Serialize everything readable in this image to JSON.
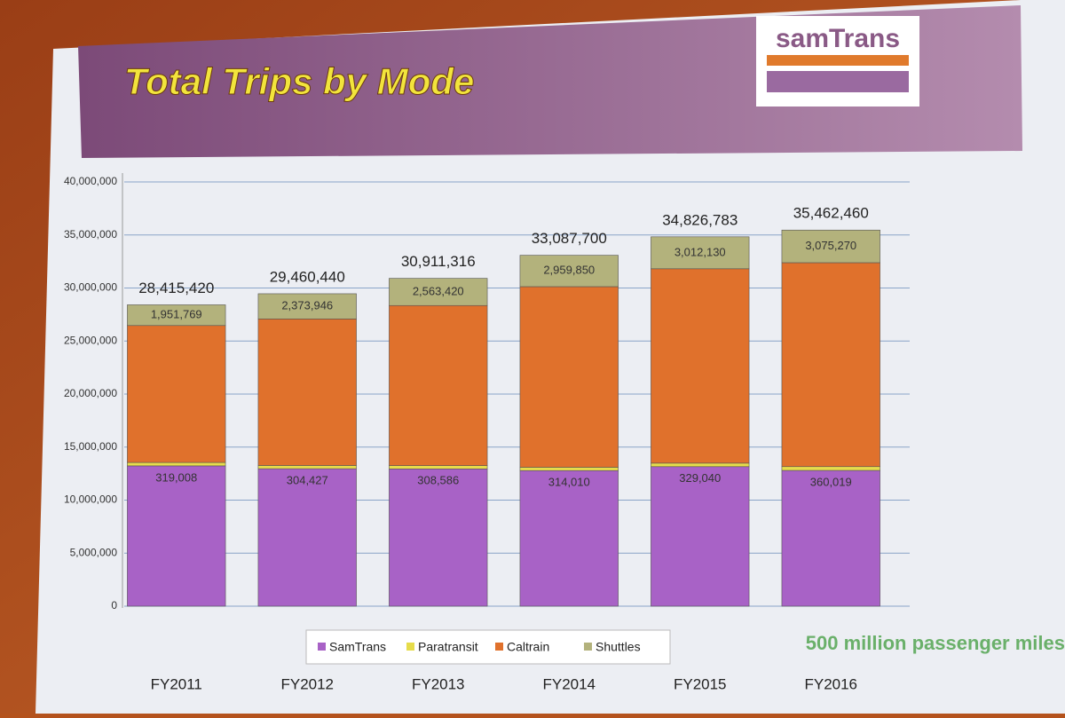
{
  "chart_data": {
    "type": "stacked_bar",
    "title": "Total Trips by Mode",
    "logo": "samTrans",
    "annotation": "500 million passenger miles",
    "categories": [
      "FY2011",
      "FY2012",
      "FY2013",
      "FY2014",
      "FY2015",
      "FY2016"
    ],
    "series": [
      {
        "name": "SamTrans",
        "color": "#a862c6",
        "values": [
          13230000,
          12960000,
          12945000,
          12784390,
          13156700,
          12799750
        ]
      },
      {
        "name": "Paratransit",
        "color": "#e6dc4a",
        "values": [
          319008,
          304427,
          308586,
          314010,
          329040,
          360019
        ],
        "value_labels": [
          "319,008",
          "304,427",
          "308,586",
          "314,010",
          "329,040",
          "360,019"
        ]
      },
      {
        "name": "Caltrain",
        "color": "#e0712c",
        "values": [
          12914643,
          13822067,
          15094310,
          17029450,
          18328913,
          19227421
        ]
      },
      {
        "name": "Shuttles",
        "color": "#b3b27c",
        "values": [
          1951769,
          2373946,
          2563420,
          2959850,
          3012130,
          3075270
        ],
        "value_labels": [
          "1,951,769",
          "2,373,946",
          "2,563,420",
          "2,959,850",
          "3,012,130",
          "3,075,270"
        ]
      }
    ],
    "totals": {
      "values": [
        28415420,
        29460440,
        30911316,
        33087700,
        34826783,
        35462460
      ],
      "value_labels": [
        "28,415,420",
        "29,460,440",
        "30,911,316",
        "33,087,700",
        "34,826,783",
        "35,462,460"
      ]
    },
    "ylim": [
      0,
      40000000
    ],
    "yticks": [
      {
        "value": 0,
        "label": "0"
      },
      {
        "value": 5000000,
        "label": "5,000,000"
      },
      {
        "value": 10000000,
        "label": "10,000,000"
      },
      {
        "value": 15000000,
        "label": "15,000,000"
      },
      {
        "value": 20000000,
        "label": "20,000,000"
      },
      {
        "value": 25000000,
        "label": "25,000,000"
      },
      {
        "value": 30000000,
        "label": "30,000,000"
      },
      {
        "value": 35000000,
        "label": "35,000,000"
      },
      {
        "value": 40000000,
        "label": "40,000,000"
      }
    ],
    "grid": true
  }
}
